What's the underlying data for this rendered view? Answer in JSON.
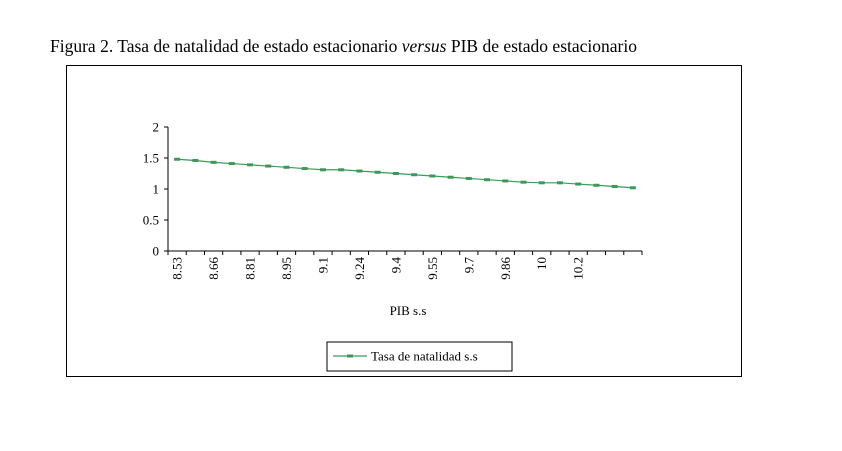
{
  "title": {
    "prefix": "Figura 2. Tasa de natalidad de estado estacionario ",
    "italic": "versus",
    "suffix": " PIB de estado estacionario"
  },
  "chart_data": {
    "type": "line",
    "title": "",
    "xlabel": "PIB s.s",
    "ylabel": "",
    "ylim": [
      0,
      2
    ],
    "yticks": [
      "0",
      "0.5",
      "1",
      "1.5",
      "2"
    ],
    "xtick_labels": [
      "8.53",
      "8.66",
      "8.81",
      "8.95",
      "9.1",
      "9.24",
      "9.4",
      "9.55",
      "9.7",
      "9.86",
      "10",
      "10.2"
    ],
    "legend": "bottom",
    "grid": false,
    "series": [
      {
        "name": "Tasa de natalidad s.s",
        "color": "#3a9a5a",
        "values": [
          1.48,
          1.46,
          1.43,
          1.41,
          1.39,
          1.37,
          1.35,
          1.33,
          1.31,
          1.31,
          1.29,
          1.27,
          1.25,
          1.23,
          1.21,
          1.19,
          1.17,
          1.15,
          1.13,
          1.11,
          1.1,
          1.1,
          1.08,
          1.06,
          1.04,
          1.02
        ]
      }
    ]
  }
}
